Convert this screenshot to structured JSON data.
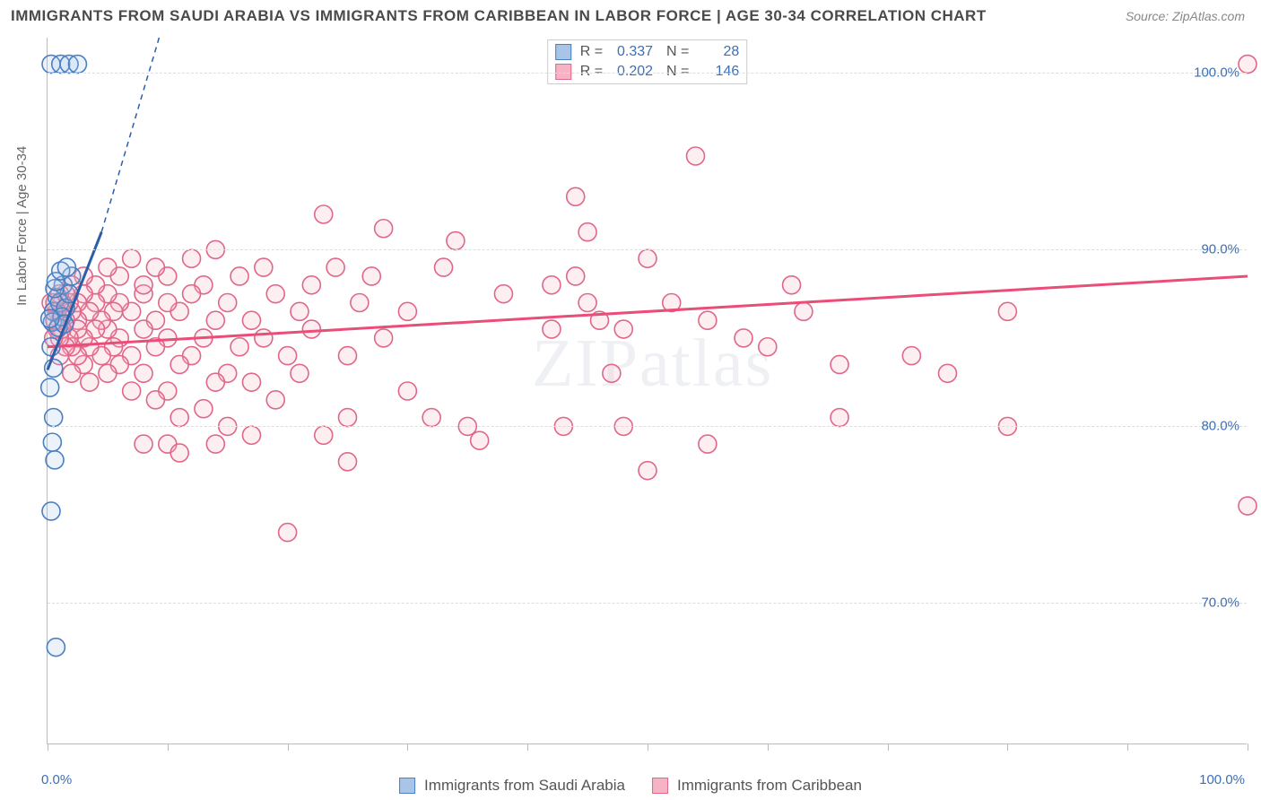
{
  "title": "IMMIGRANTS FROM SAUDI ARABIA VS IMMIGRANTS FROM CARIBBEAN IN LABOR FORCE | AGE 30-34 CORRELATION CHART",
  "source": "Source: ZipAtlas.com",
  "watermark": "ZIPatlas",
  "ylabel": "In Labor Force | Age 30-34",
  "chart": {
    "type": "scatter",
    "background_color": "#ffffff",
    "grid_color": "#dddddd",
    "border_color": "#bbbbbb",
    "xlim": [
      0,
      100
    ],
    "ylim": [
      62,
      102
    ],
    "ytick_labels": [
      {
        "v": 70,
        "label": "70.0%"
      },
      {
        "v": 80,
        "label": "80.0%"
      },
      {
        "v": 90,
        "label": "90.0%"
      },
      {
        "v": 100,
        "label": "100.0%"
      }
    ],
    "xtick_positions": [
      0,
      10,
      20,
      30,
      40,
      50,
      60,
      70,
      80,
      90,
      100
    ],
    "xtick_labels": [
      {
        "v": 0,
        "label": "0.0%"
      },
      {
        "v": 100,
        "label": "100.0%"
      }
    ],
    "marker_radius": 10,
    "marker_stroke_width": 1.6,
    "marker_fill_opacity": 0.22,
    "trend_line_width": 3,
    "series": [
      {
        "id": "saudi",
        "name": "Immigrants from Saudi Arabia",
        "color": "#6fa0d8",
        "stroke": "#4a7fc2",
        "fill": "#a8c5e8",
        "R": 0.337,
        "N": 28,
        "trend": {
          "x1": 0,
          "y1": 83.2,
          "x2": 4.5,
          "y2": 91,
          "dash_x2": 9.3,
          "dash_y2": 102,
          "color": "#2a5fa8"
        },
        "points": [
          [
            0.3,
            100.5
          ],
          [
            1.1,
            100.5
          ],
          [
            1.8,
            100.5
          ],
          [
            2.5,
            100.5
          ],
          [
            0.5,
            80.5
          ],
          [
            0.4,
            79.1
          ],
          [
            0.6,
            78.1
          ],
          [
            0.3,
            75.2
          ],
          [
            0.7,
            67.5
          ],
          [
            0.2,
            82.2
          ],
          [
            0.5,
            86.5
          ],
          [
            0.8,
            87.3
          ],
          [
            1.0,
            87.0
          ],
          [
            1.3,
            88.0
          ],
          [
            1.5,
            86.7
          ],
          [
            1.8,
            87.5
          ],
          [
            2.0,
            88.5
          ],
          [
            0.4,
            85.9
          ],
          [
            0.9,
            85.6
          ],
          [
            1.2,
            86.2
          ],
          [
            0.6,
            87.8
          ],
          [
            1.4,
            85.8
          ],
          [
            0.3,
            84.5
          ],
          [
            0.7,
            88.2
          ],
          [
            1.1,
            88.8
          ],
          [
            1.6,
            89.0
          ],
          [
            0.5,
            83.3
          ],
          [
            0.2,
            86.1
          ]
        ]
      },
      {
        "id": "caribbean",
        "name": "Immigrants from Caribbean",
        "color": "#eb8fa8",
        "stroke": "#e06788",
        "fill": "#f5b3c5",
        "R": 0.202,
        "N": 146,
        "trend": {
          "x1": 0,
          "y1": 84.5,
          "x2": 100,
          "y2": 88.5,
          "color": "#e94d78"
        },
        "points": [
          [
            100,
            100.5
          ],
          [
            100,
            75.5
          ],
          [
            66,
            83.5
          ],
          [
            66,
            80.5
          ],
          [
            75,
            83.0
          ],
          [
            72,
            84.0
          ],
          [
            80,
            86.5
          ],
          [
            80,
            80.0
          ],
          [
            54,
            95.3
          ],
          [
            55,
            79.0
          ],
          [
            44,
            93.0
          ],
          [
            45,
            91.0
          ],
          [
            50,
            89.5
          ],
          [
            50,
            77.5
          ],
          [
            47,
            83.0
          ],
          [
            48,
            85.5
          ],
          [
            45,
            87.0
          ],
          [
            43,
            80.0
          ],
          [
            42,
            88.0
          ],
          [
            38,
            87.5
          ],
          [
            36,
            79.2
          ],
          [
            35,
            80.0
          ],
          [
            34,
            90.5
          ],
          [
            33,
            89.0
          ],
          [
            32,
            80.5
          ],
          [
            30,
            86.5
          ],
          [
            30,
            82.0
          ],
          [
            28,
            91.2
          ],
          [
            28,
            85.0
          ],
          [
            27,
            88.5
          ],
          [
            26,
            87.0
          ],
          [
            25,
            84.0
          ],
          [
            25,
            80.5
          ],
          [
            24,
            89.0
          ],
          [
            23,
            92.0
          ],
          [
            23,
            79.5
          ],
          [
            22,
            85.5
          ],
          [
            22,
            88.0
          ],
          [
            21,
            83.0
          ],
          [
            21,
            86.5
          ],
          [
            20,
            84.0
          ],
          [
            20,
            74.0
          ],
          [
            19,
            87.5
          ],
          [
            19,
            81.5
          ],
          [
            18,
            85.0
          ],
          [
            18,
            89.0
          ],
          [
            17,
            86.0
          ],
          [
            17,
            82.5
          ],
          [
            16,
            88.5
          ],
          [
            16,
            84.5
          ],
          [
            15,
            87.0
          ],
          [
            15,
            83.0
          ],
          [
            15,
            80.0
          ],
          [
            14,
            90.0
          ],
          [
            14,
            86.0
          ],
          [
            14,
            82.5
          ],
          [
            13,
            88.0
          ],
          [
            13,
            85.0
          ],
          [
            13,
            81.0
          ],
          [
            12,
            87.5
          ],
          [
            12,
            84.0
          ],
          [
            12,
            89.5
          ],
          [
            11,
            86.5
          ],
          [
            11,
            83.5
          ],
          [
            11,
            80.5
          ],
          [
            10,
            87.0
          ],
          [
            10,
            85.0
          ],
          [
            10,
            88.5
          ],
          [
            10,
            82.0
          ],
          [
            9,
            86.0
          ],
          [
            9,
            84.5
          ],
          [
            9,
            89.0
          ],
          [
            9,
            81.5
          ],
          [
            8,
            87.5
          ],
          [
            8,
            85.5
          ],
          [
            8,
            83.0
          ],
          [
            8,
            88.0
          ],
          [
            7,
            86.5
          ],
          [
            7,
            84.0
          ],
          [
            7,
            89.5
          ],
          [
            7,
            82.0
          ],
          [
            6,
            87.0
          ],
          [
            6,
            85.0
          ],
          [
            6,
            83.5
          ],
          [
            6,
            88.5
          ],
          [
            5.5,
            86.5
          ],
          [
            5.5,
            84.5
          ],
          [
            5,
            87.5
          ],
          [
            5,
            85.5
          ],
          [
            5,
            83.0
          ],
          [
            5,
            89.0
          ],
          [
            4.5,
            86.0
          ],
          [
            4.5,
            84.0
          ],
          [
            4,
            87.0
          ],
          [
            4,
            85.5
          ],
          [
            4,
            88.0
          ],
          [
            3.5,
            86.5
          ],
          [
            3.5,
            84.5
          ],
          [
            3.5,
            82.5
          ],
          [
            3,
            87.5
          ],
          [
            3,
            85.0
          ],
          [
            3,
            88.5
          ],
          [
            3,
            83.5
          ],
          [
            2.5,
            86.0
          ],
          [
            2.5,
            84.0
          ],
          [
            2.5,
            87.0
          ],
          [
            2.5,
            85.5
          ],
          [
            2,
            86.5
          ],
          [
            2,
            88.0
          ],
          [
            2,
            84.5
          ],
          [
            2,
            83.0
          ],
          [
            1.8,
            87.0
          ],
          [
            1.8,
            85.0
          ],
          [
            1.5,
            86.0
          ],
          [
            1.5,
            87.5
          ],
          [
            1.5,
            84.5
          ],
          [
            1.2,
            86.5
          ],
          [
            1.2,
            85.5
          ],
          [
            1.2,
            87.0
          ],
          [
            1,
            86.0
          ],
          [
            1,
            85.0
          ],
          [
            1,
            87.5
          ],
          [
            1,
            84.0
          ],
          [
            0.8,
            86.5
          ],
          [
            0.8,
            85.5
          ],
          [
            0.6,
            87.0
          ],
          [
            0.6,
            86.0
          ],
          [
            0.5,
            85.0
          ],
          [
            0.5,
            86.5
          ],
          [
            0.3,
            87.0
          ],
          [
            42,
            85.5
          ],
          [
            44,
            88.5
          ],
          [
            46,
            86.0
          ],
          [
            48,
            80.0
          ],
          [
            52,
            87.0
          ],
          [
            55,
            86.0
          ],
          [
            58,
            85.0
          ],
          [
            60,
            84.5
          ],
          [
            62,
            88.0
          ],
          [
            63,
            86.5
          ],
          [
            8,
            79.0
          ],
          [
            10,
            79.0
          ],
          [
            11,
            78.5
          ],
          [
            14,
            79.0
          ],
          [
            17,
            79.5
          ],
          [
            25,
            78.0
          ]
        ]
      }
    ]
  },
  "label_color": "#3b6fb6",
  "text_color": "#555555"
}
